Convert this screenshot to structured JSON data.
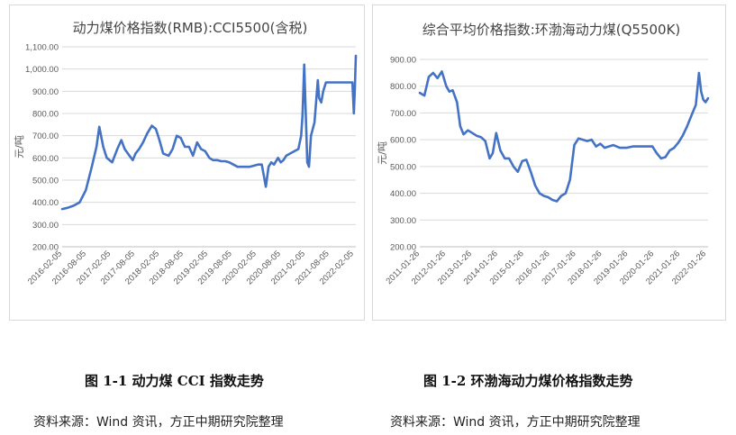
{
  "captions": {
    "fig1": "图 1-1  动力煤 CCI 指数走势",
    "fig2": "图 1-2  环渤海动力煤价格指数走势"
  },
  "sources": {
    "fig1": "资料来源：Wind 资讯，方正中期研究院整理",
    "fig2": "资料来源：Wind 资讯，方正中期研究院整理"
  },
  "colors": {
    "line": "#4472C4",
    "grid": "#d9d9d9",
    "axis_text": "#595959"
  },
  "chart_data": [
    {
      "type": "line",
      "title": "动力煤价格指数(RMB):CCI5500(含税)",
      "ylabel": "元/吨",
      "xlabel": "",
      "ylim": [
        200,
        1100
      ],
      "yticks": [
        "200.00",
        "300.00",
        "400.00",
        "500.00",
        "600.00",
        "700.00",
        "800.00",
        "900.00",
        "1,000.00",
        "1,100.00"
      ],
      "xticks": [
        "2016-02-05",
        "2016-08-05",
        "2017-02-05",
        "2017-08-05",
        "2018-02-05",
        "2018-08-05",
        "2019-02-05",
        "2019-08-05",
        "2020-02-05",
        "2020-08-05",
        "2021-02-05",
        "2021-08-05",
        "2022-02-05"
      ],
      "grid": true,
      "legend": "none",
      "series": [
        {
          "x": [
            "2016-02-05",
            "2016-03-15",
            "2016-05-01",
            "2016-06-15",
            "2016-08-01",
            "2016-09-15",
            "2016-10-20",
            "2016-11-10",
            "2016-12-10",
            "2017-01-05",
            "2017-02-15",
            "2017-03-25",
            "2017-04-25",
            "2017-05-20",
            "2017-06-25",
            "2017-07-20",
            "2017-08-10",
            "2017-09-05",
            "2017-10-05",
            "2017-11-05",
            "2017-12-10",
            "2018-01-10",
            "2018-02-05",
            "2018-03-05",
            "2018-04-15",
            "2018-05-15",
            "2018-06-15",
            "2018-07-15",
            "2018-08-15",
            "2018-09-15",
            "2018-10-15",
            "2018-11-15",
            "2018-12-15",
            "2019-01-15",
            "2019-02-15",
            "2019-03-15",
            "2019-04-15",
            "2019-05-15",
            "2019-06-15",
            "2019-07-15",
            "2019-08-15",
            "2019-09-15",
            "2019-10-15",
            "2019-11-15",
            "2019-12-15",
            "2020-01-15",
            "2020-02-15",
            "2020-03-15",
            "2020-04-15",
            "2020-05-05",
            "2020-05-25",
            "2020-06-15",
            "2020-07-15",
            "2020-08-05",
            "2020-08-25",
            "2020-09-15",
            "2020-10-15",
            "2020-11-15",
            "2020-12-15",
            "2021-01-05",
            "2021-01-15",
            "2021-01-28",
            "2021-02-20",
            "2021-03-05",
            "2021-03-20",
            "2021-04-15",
            "2021-05-10",
            "2021-05-20",
            "2021-06-05",
            "2021-06-20",
            "2021-07-10",
            "2021-08-10",
            "2021-09-10",
            "2021-10-10",
            "2021-11-10",
            "2021-12-10",
            "2022-01-10",
            "2022-01-25",
            "2022-02-05",
            "2022-02-12",
            "2022-02-20"
          ],
          "values": [
            370,
            375,
            385,
            400,
            455,
            560,
            650,
            740,
            650,
            600,
            580,
            640,
            680,
            640,
            610,
            590,
            620,
            640,
            670,
            710,
            745,
            730,
            680,
            620,
            610,
            640,
            700,
            690,
            650,
            650,
            610,
            670,
            640,
            630,
            600,
            590,
            590,
            585,
            585,
            580,
            570,
            560,
            560,
            560,
            560,
            565,
            570,
            570,
            470,
            560,
            580,
            570,
            600,
            580,
            590,
            610,
            620,
            630,
            640,
            700,
            790,
            1020,
            580,
            560,
            700,
            760,
            950,
            870,
            850,
            900,
            940,
            940,
            940,
            940,
            940,
            940,
            940,
            940,
            800,
            900,
            1060
          ]
        }
      ]
    },
    {
      "type": "line",
      "title": "综合平均价格指数:环渤海动力煤(Q5500K)",
      "ylabel": "元/吨",
      "xlabel": "",
      "ylim": [
        200,
        900
      ],
      "yticks": [
        "200.00",
        "300.00",
        "400.00",
        "500.00",
        "600.00",
        "700.00",
        "800.00",
        "900.00"
      ],
      "xticks": [
        "2011-01-26",
        "2012-01-26",
        "2013-01-26",
        "2014-01-26",
        "2015-01-26",
        "2016-01-26",
        "2017-01-26",
        "2018-01-26",
        "2019-01-26",
        "2020-01-26",
        "2021-01-26",
        "2022-01-26"
      ],
      "grid": true,
      "legend": "none",
      "series": [
        {
          "x": [
            "2011-01-26",
            "2011-04-01",
            "2011-06-01",
            "2011-08-01",
            "2011-10-01",
            "2011-12-01",
            "2012-02-01",
            "2012-03-15",
            "2012-05-01",
            "2012-07-01",
            "2012-08-15",
            "2012-10-01",
            "2012-12-01",
            "2013-02-01",
            "2013-04-01",
            "2013-06-01",
            "2013-08-01",
            "2013-10-01",
            "2013-11-15",
            "2014-01-01",
            "2014-03-01",
            "2014-05-01",
            "2014-07-01",
            "2014-09-01",
            "2014-11-01",
            "2015-01-01",
            "2015-03-01",
            "2015-05-01",
            "2015-07-01",
            "2015-09-01",
            "2015-11-01",
            "2016-01-01",
            "2016-03-01",
            "2016-05-01",
            "2016-07-01",
            "2016-09-01",
            "2016-11-01",
            "2017-01-01",
            "2017-03-01",
            "2017-05-01",
            "2017-07-01",
            "2017-09-01",
            "2017-11-01",
            "2018-01-01",
            "2018-03-01",
            "2018-05-01",
            "2018-07-01",
            "2018-10-01",
            "2019-01-01",
            "2019-04-01",
            "2019-07-01",
            "2019-10-01",
            "2020-01-01",
            "2020-03-01",
            "2020-05-01",
            "2020-07-01",
            "2020-09-01",
            "2020-11-01",
            "2021-01-01",
            "2021-03-01",
            "2021-05-01",
            "2021-07-01",
            "2021-09-01",
            "2021-10-15",
            "2021-11-15",
            "2021-12-15",
            "2022-01-15",
            "2022-02-20"
          ],
          "values": [
            775,
            765,
            835,
            850,
            830,
            855,
            800,
            780,
            785,
            740,
            650,
            620,
            635,
            625,
            615,
            610,
            595,
            530,
            550,
            625,
            560,
            530,
            530,
            500,
            480,
            520,
            525,
            480,
            430,
            400,
            390,
            385,
            375,
            370,
            390,
            400,
            450,
            580,
            605,
            600,
            595,
            600,
            575,
            585,
            570,
            575,
            580,
            570,
            570,
            575,
            575,
            575,
            575,
            550,
            530,
            535,
            560,
            570,
            590,
            615,
            650,
            690,
            730,
            850,
            780,
            750,
            740,
            755
          ]
        }
      ]
    }
  ]
}
